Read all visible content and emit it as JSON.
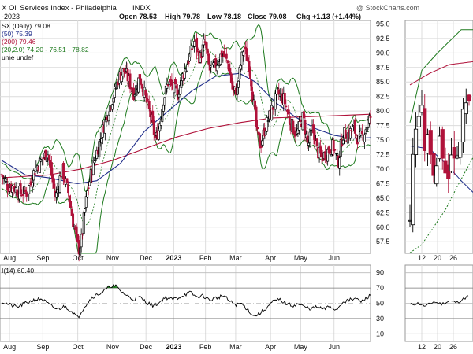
{
  "header": {
    "title_left": "X Oil Services Index - Philadelphia",
    "exchange": "INDX",
    "ohlc_open": "Open 78.53",
    "ohlc_high": "High 79.78",
    "ohlc_low": "Low 78.18",
    "ohlc_close": "Close 79.08",
    "ohlc_chg": "Chg +1.13 (+1.44%)",
    "watermark": "@ StockCharts.com",
    "date_label": "-2023"
  },
  "legend": {
    "line1": "SX (Daily) 79.08",
    "line2": "(50) 75.39",
    "line3": "(200) 79.46",
    "line4": "(20,2.0) 74.20 - 76.51 - 78.82",
    "line5": "ume undef"
  },
  "colors": {
    "up_candle": "#000000",
    "down_candle": "#b0123a",
    "ma50": "#1f2d8a",
    "ma200": "#b0123a",
    "bollinger": "#1e7a1e",
    "grid": "#dcdcdc",
    "rsi_line": "#000000",
    "rsi_overbought_fill": "#1e7a1e"
  },
  "chart_data": [
    {
      "type": "candlestick",
      "series_name": "SX (Daily)",
      "y_ticks": [
        57.5,
        60.0,
        62.5,
        65.0,
        67.5,
        70.0,
        72.5,
        75.0,
        77.5,
        80.0,
        82.5,
        85.0,
        87.5,
        90.0,
        92.5,
        95.0
      ],
      "ylim": [
        55.5,
        95.6
      ],
      "x_tick_labels": [
        "Aug",
        "Sep",
        "Oct",
        "Nov",
        "Dec",
        "2023",
        "Feb",
        "Mar",
        "Apr",
        "May",
        "Jun"
      ],
      "x_tick_days": [
        10,
        52,
        96,
        140,
        182,
        217,
        257,
        295,
        339,
        377,
        419
      ],
      "xlim": [
        -2,
        465
      ],
      "anchors": [
        [
          0,
          69
        ],
        [
          8,
          67
        ],
        [
          15,
          67
        ],
        [
          22,
          66
        ],
        [
          32,
          66
        ],
        [
          42,
          70
        ],
        [
          58,
          73
        ],
        [
          68,
          65
        ],
        [
          76,
          70
        ],
        [
          84,
          66
        ],
        [
          90,
          61
        ],
        [
          93,
          59
        ],
        [
          97,
          56
        ],
        [
          101,
          58
        ],
        [
          104,
          62
        ],
        [
          108,
          66
        ],
        [
          114,
          70
        ],
        [
          120,
          73
        ],
        [
          126,
          76
        ],
        [
          134,
          80
        ],
        [
          142,
          83
        ],
        [
          148,
          86
        ],
        [
          155,
          87
        ],
        [
          161,
          85
        ],
        [
          167,
          83
        ],
        [
          174,
          86
        ],
        [
          180,
          83
        ],
        [
          188,
          79
        ],
        [
          194,
          75
        ],
        [
          198,
          77
        ],
        [
          204,
          82
        ],
        [
          210,
          85
        ],
        [
          216,
          84
        ],
        [
          222,
          83
        ],
        [
          228,
          86
        ],
        [
          236,
          89
        ],
        [
          243,
          92
        ],
        [
          250,
          89
        ],
        [
          256,
          92
        ],
        [
          262,
          87
        ],
        [
          270,
          88
        ],
        [
          278,
          90
        ],
        [
          286,
          88
        ],
        [
          292,
          83
        ],
        [
          297,
          84
        ],
        [
          305,
          91
        ],
        [
          312,
          88
        ],
        [
          318,
          81
        ],
        [
          322,
          76
        ],
        [
          326,
          74
        ],
        [
          332,
          77
        ],
        [
          340,
          80
        ],
        [
          348,
          83
        ],
        [
          356,
          82
        ],
        [
          364,
          78
        ],
        [
          372,
          76
        ],
        [
          380,
          79
        ],
        [
          386,
          74
        ],
        [
          392,
          77
        ],
        [
          398,
          73
        ],
        [
          404,
          72
        ],
        [
          410,
          73
        ],
        [
          418,
          74
        ],
        [
          424,
          71
        ],
        [
          430,
          76
        ],
        [
          436,
          76
        ],
        [
          444,
          77
        ],
        [
          450,
          75
        ],
        [
          456,
          76
        ],
        [
          462,
          78
        ],
        [
          465,
          79
        ]
      ],
      "ma50_anchors": [
        [
          0,
          71.5
        ],
        [
          30,
          69.0
        ],
        [
          60,
          68.5
        ],
        [
          95,
          67.5
        ],
        [
          120,
          68.0
        ],
        [
          150,
          71.0
        ],
        [
          180,
          76.5
        ],
        [
          210,
          80.0
        ],
        [
          240,
          83.5
        ],
        [
          270,
          86.0
        ],
        [
          300,
          86.5
        ],
        [
          320,
          85.0
        ],
        [
          345,
          81.5
        ],
        [
          370,
          79.0
        ],
        [
          395,
          77.0
        ],
        [
          420,
          75.8
        ],
        [
          445,
          75.3
        ],
        [
          465,
          75.4
        ]
      ],
      "ma200_anchors": [
        [
          0,
          68.5
        ],
        [
          60,
          69.0
        ],
        [
          100,
          70.0
        ],
        [
          140,
          71.5
        ],
        [
          180,
          73.5
        ],
        [
          220,
          75.5
        ],
        [
          260,
          77.0
        ],
        [
          300,
          78.0
        ],
        [
          340,
          78.8
        ],
        [
          380,
          79.0
        ],
        [
          420,
          79.2
        ],
        [
          465,
          79.46
        ]
      ],
      "last_close": 79.08,
      "ma50_last": 75.39,
      "ma200_last": 79.46,
      "bollinger_last": [
        74.2,
        76.51,
        78.82
      ]
    },
    {
      "type": "line",
      "series_name": "RSI(14)",
      "label": "I(14) 60.40",
      "y_ticks": [
        10,
        30,
        50,
        70,
        90
      ],
      "ylim": [
        0,
        100
      ],
      "overbought": 70,
      "oversold": 30,
      "x_tick_labels": [
        "Aug",
        "Sep",
        "Oct",
        "Nov",
        "Dec",
        "2023",
        "Feb",
        "Mar",
        "Apr",
        "May",
        "Jun"
      ],
      "rsi_anchors": [
        [
          0,
          52
        ],
        [
          10,
          48
        ],
        [
          20,
          45
        ],
        [
          30,
          50
        ],
        [
          40,
          54
        ],
        [
          50,
          56
        ],
        [
          60,
          48
        ],
        [
          70,
          42
        ],
        [
          80,
          46
        ],
        [
          90,
          38
        ],
        [
          96,
          31
        ],
        [
          104,
          45
        ],
        [
          114,
          58
        ],
        [
          124,
          63
        ],
        [
          132,
          68
        ],
        [
          138,
          73
        ],
        [
          144,
          72
        ],
        [
          150,
          66
        ],
        [
          158,
          60
        ],
        [
          166,
          55
        ],
        [
          174,
          58
        ],
        [
          182,
          52
        ],
        [
          190,
          47
        ],
        [
          198,
          50
        ],
        [
          206,
          58
        ],
        [
          214,
          55
        ],
        [
          222,
          57
        ],
        [
          230,
          61
        ],
        [
          238,
          64
        ],
        [
          246,
          58
        ],
        [
          254,
          60
        ],
        [
          262,
          54
        ],
        [
          270,
          57
        ],
        [
          280,
          60
        ],
        [
          288,
          52
        ],
        [
          296,
          48
        ],
        [
          302,
          50
        ],
        [
          310,
          42
        ],
        [
          318,
          33
        ],
        [
          326,
          37
        ],
        [
          334,
          44
        ],
        [
          342,
          52
        ],
        [
          350,
          55
        ],
        [
          358,
          50
        ],
        [
          366,
          47
        ],
        [
          374,
          49
        ],
        [
          382,
          45
        ],
        [
          390,
          43
        ],
        [
          398,
          45
        ],
        [
          406,
          42
        ],
        [
          414,
          46
        ],
        [
          422,
          41
        ],
        [
          430,
          52
        ],
        [
          438,
          54
        ],
        [
          446,
          56
        ],
        [
          454,
          52
        ],
        [
          460,
          57
        ],
        [
          465,
          60.4
        ]
      ],
      "last": 60.4
    },
    {
      "type": "candlestick",
      "series_name": "SX zoom",
      "x_tick_labels": [
        "12",
        "20",
        "26"
      ],
      "anchors": [
        [
          0,
          62
        ],
        [
          2,
          75
        ],
        [
          4,
          80
        ],
        [
          6,
          79
        ],
        [
          8,
          73
        ],
        [
          10,
          76
        ],
        [
          12,
          70
        ],
        [
          14,
          72
        ],
        [
          16,
          75
        ],
        [
          18,
          69
        ],
        [
          20,
          71
        ],
        [
          22,
          73
        ],
        [
          24,
          74
        ],
        [
          26,
          77
        ],
        [
          28,
          79
        ],
        [
          30,
          81
        ]
      ],
      "rsi_anchors": [
        [
          0,
          48
        ],
        [
          4,
          50
        ],
        [
          8,
          46
        ],
        [
          12,
          52
        ],
        [
          16,
          49
        ],
        [
          20,
          53
        ],
        [
          24,
          51
        ],
        [
          28,
          57
        ],
        [
          30,
          60
        ]
      ]
    }
  ],
  "main_ticks": [
    "57.5",
    "60.0",
    "62.5",
    "65.0",
    "67.5",
    "70.0",
    "72.5",
    "75.0",
    "77.5",
    "80.0",
    "82.5",
    "85.0",
    "87.5",
    "90.0",
    "92.5",
    "95.0"
  ],
  "rsi_ticks": [
    "10",
    "30",
    "50",
    "70",
    "90"
  ],
  "months": [
    "Aug",
    "Sep",
    "Oct",
    "Nov",
    "Dec",
    "2023",
    "Feb",
    "Mar",
    "Apr",
    "May",
    "Jun"
  ],
  "zoom_days": [
    "12",
    "20",
    "26"
  ],
  "rsi": {
    "label": "I(14) 60.40"
  }
}
